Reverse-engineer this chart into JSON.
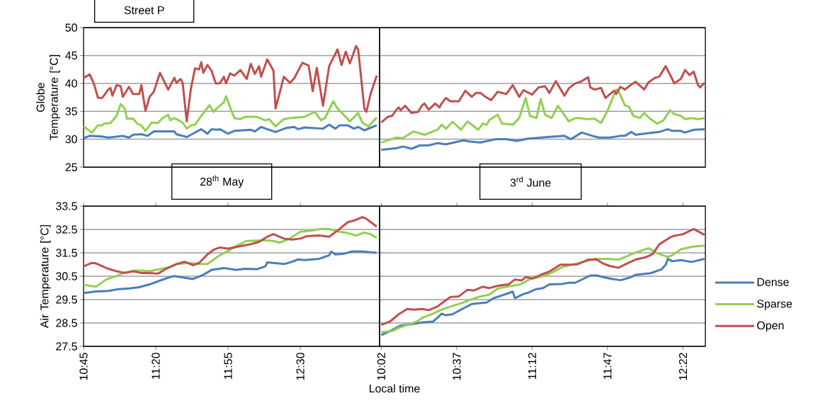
{
  "chart_data": [
    {
      "type": "line",
      "title": "Street P",
      "ylabel": "Globe Temperature [°C]",
      "xlim": [
        10.75,
        13.14
      ],
      "ylim": [
        25,
        50
      ],
      "yticks": [
        25,
        30,
        35,
        40,
        45,
        50
      ],
      "grid": "y",
      "tick_labels": "y",
      "series": [
        {
          "color": "#4a7ebb",
          "x": [
            10.75,
            10.8,
            10.9,
            10.95,
            11.067,
            11.117,
            11.15,
            11.217,
            11.267,
            11.317,
            11.483,
            11.5,
            11.583,
            11.633,
            11.7,
            11.75,
            11.783,
            11.833,
            11.85,
            11.917,
            11.967,
            12.1,
            12.133,
            12.183,
            12.233,
            12.3,
            12.383,
            12.45,
            12.483,
            12.533,
            12.683,
            12.733,
            12.783,
            12.817,
            12.883,
            12.933,
            12.967,
            13.017,
            13.117
          ],
          "values": [
            30.2,
            30.6,
            30.5,
            30.3,
            30.6,
            30.3,
            30.8,
            30.9,
            30.6,
            31.4,
            31.4,
            30.9,
            30.4,
            31.0,
            31.8,
            31.0,
            31.8,
            31.7,
            31.8,
            31.0,
            31.5,
            31.7,
            31.4,
            32.2,
            31.8,
            31.3,
            32.0,
            32.2,
            31.8,
            32.1,
            31.9,
            32.6,
            31.9,
            32.5,
            32.5,
            31.9,
            32.2,
            31.6,
            32.5
          ]
        },
        {
          "color": "#92d050",
          "x": [
            10.75,
            10.817,
            10.867,
            10.9,
            10.917,
            10.967,
            11.017,
            11.05,
            11.083,
            11.1,
            11.15,
            11.183,
            11.217,
            11.25,
            11.3,
            11.35,
            11.383,
            11.433,
            11.45,
            11.483,
            11.55,
            11.583,
            11.617,
            11.65,
            11.7,
            11.767,
            11.8,
            11.833,
            11.883,
            11.9,
            11.967,
            12.017,
            12.05,
            12.15,
            12.217,
            12.25,
            12.3,
            12.367,
            12.417,
            12.533,
            12.617,
            12.667,
            12.7,
            12.75,
            12.767,
            12.8,
            12.85,
            12.9,
            12.967,
            13.0,
            13.05,
            13.117
          ],
          "values": [
            32.3,
            31.2,
            32.5,
            32.5,
            32.8,
            32.9,
            34.2,
            36.3,
            35.5,
            33.7,
            33.7,
            32.8,
            32.5,
            31.5,
            33.0,
            32.9,
            33.7,
            34.4,
            33.4,
            33.8,
            33.0,
            31.9,
            32.5,
            32.6,
            34.2,
            36.1,
            34.9,
            35.7,
            36.6,
            37.7,
            33.8,
            33.6,
            34.0,
            34.0,
            33.4,
            33.6,
            32.3,
            33.6,
            33.8,
            34.0,
            34.9,
            33.4,
            33.8,
            36.1,
            36.8,
            35.5,
            34.4,
            33.2,
            34.7,
            33.0,
            32.3,
            33.9
          ]
        },
        {
          "color": "#c0504d",
          "x": [
            10.75,
            10.8,
            10.833,
            10.867,
            10.9,
            10.95,
            10.967,
            10.983,
            11.017,
            11.05,
            11.067,
            11.117,
            11.15,
            11.2,
            11.217,
            11.25,
            11.283,
            11.317,
            11.367,
            11.433,
            11.483,
            11.5,
            11.533,
            11.55,
            11.583,
            11.617,
            11.65,
            11.683,
            11.7,
            11.717,
            11.75,
            11.783,
            11.817,
            11.85,
            11.883,
            11.9,
            11.933,
            11.967,
            12.017,
            12.067,
            12.1,
            12.133,
            12.167,
            12.183,
            12.233,
            12.283,
            12.3,
            12.367,
            12.417,
            12.45,
            12.517,
            12.567,
            12.6,
            12.633,
            12.683,
            12.733,
            12.8,
            12.833,
            12.867,
            12.9,
            12.95,
            12.967,
            13.017,
            13.033,
            13.067,
            13.117
          ],
          "values": [
            41.0,
            41.6,
            40.0,
            37.4,
            37.4,
            38.9,
            39.2,
            37.8,
            39.7,
            39.5,
            37.6,
            39.4,
            38.1,
            38.1,
            39.7,
            35.1,
            37.6,
            38.5,
            41.9,
            38.9,
            41.0,
            40.1,
            40.8,
            40.1,
            33.2,
            39.1,
            42.7,
            42.5,
            43.8,
            41.9,
            43.3,
            42.3,
            40.0,
            40.0,
            41.2,
            40.0,
            41.8,
            41.4,
            42.4,
            40.8,
            43.5,
            41.7,
            43.1,
            41.2,
            44.3,
            42.3,
            35.5,
            41.2,
            40.1,
            40.9,
            43.7,
            43.2,
            38.6,
            42.8,
            36.0,
            43.1,
            46.1,
            43.3,
            45.7,
            43.6,
            46.7,
            46.1,
            35.5,
            34.9,
            38.1,
            41.4
          ]
        }
      ]
    },
    {
      "type": "line",
      "xlim": [
        10.02,
        12.54
      ],
      "ylim": [
        25,
        50
      ],
      "yticks": [
        25,
        30,
        35,
        40,
        45,
        50
      ],
      "grid": "y",
      "tick_labels": false,
      "series": [
        {
          "color": "#4a7ebb",
          "x": [
            10.033,
            10.15,
            10.2,
            10.267,
            10.333,
            10.4,
            10.467,
            10.533,
            10.667,
            10.717,
            10.8,
            10.917,
            11.0,
            11.083,
            11.167,
            11.317,
            11.45,
            11.5,
            11.583,
            11.667,
            11.717,
            11.8,
            11.883,
            11.917,
            11.967,
            12.0,
            12.1,
            12.183,
            12.25,
            12.283,
            12.35,
            12.383,
            12.45,
            12.533
          ],
          "values": [
            28.1,
            28.4,
            28.7,
            28.3,
            28.9,
            28.9,
            29.3,
            29.1,
            29.8,
            29.6,
            29.4,
            30.0,
            30.0,
            29.7,
            30.1,
            30.4,
            30.6,
            30.0,
            31.2,
            30.6,
            30.3,
            30.3,
            30.6,
            30.6,
            31.3,
            30.8,
            31.1,
            31.3,
            31.8,
            31.5,
            31.5,
            31.2,
            31.7,
            31.8
          ]
        },
        {
          "color": "#92d050",
          "x": [
            10.033,
            10.083,
            10.15,
            10.2,
            10.283,
            10.367,
            10.433,
            10.467,
            10.5,
            10.533,
            10.583,
            10.6,
            10.65,
            10.7,
            10.783,
            10.817,
            10.85,
            10.867,
            10.933,
            10.967,
            11.05,
            11.1,
            11.15,
            11.183,
            11.233,
            11.267,
            11.3,
            11.35,
            11.4,
            11.483,
            11.533,
            11.567,
            11.633,
            11.683,
            11.733,
            11.783,
            11.85,
            11.867,
            11.917,
            11.95,
            11.983,
            12.033,
            12.067,
            12.117,
            12.167,
            12.217,
            12.267,
            12.3,
            12.35,
            12.383,
            12.433,
            12.483,
            12.533
          ],
          "values": [
            29.4,
            29.8,
            30.3,
            30.2,
            31.4,
            30.8,
            31.4,
            31.7,
            32.6,
            31.9,
            33.1,
            32.8,
            31.7,
            33.2,
            31.7,
            32.8,
            32.6,
            33.4,
            34.4,
            32.8,
            32.6,
            33.8,
            37.4,
            34.2,
            33.8,
            37.2,
            34.4,
            33.8,
            36.0,
            33.2,
            33.8,
            33.8,
            33.6,
            33.7,
            32.9,
            35.1,
            38.9,
            38.7,
            36.1,
            35.8,
            34.2,
            33.8,
            34.7,
            33.6,
            32.8,
            33.4,
            35.2,
            34.5,
            34.2,
            33.6,
            33.8,
            33.6,
            33.8
          ]
        },
        {
          "color": "#c0504d",
          "x": [
            10.033,
            10.083,
            10.117,
            10.15,
            10.167,
            10.183,
            10.217,
            10.267,
            10.317,
            10.35,
            10.367,
            10.4,
            10.45,
            10.483,
            10.5,
            10.533,
            10.567,
            10.633,
            10.683,
            10.733,
            10.767,
            10.8,
            10.833,
            10.883,
            10.933,
            11.0,
            11.05,
            11.1,
            11.133,
            11.2,
            11.25,
            11.3,
            11.333,
            11.383,
            11.45,
            11.483,
            11.533,
            11.583,
            11.633,
            11.65,
            11.683,
            11.733,
            11.767,
            11.833,
            11.85,
            11.883,
            11.917,
            11.967,
            12.0,
            12.067,
            12.1,
            12.15,
            12.183,
            12.233,
            12.283,
            12.3,
            12.35,
            12.383,
            12.417,
            12.45,
            12.483,
            12.5,
            12.533
          ],
          "values": [
            33.0,
            34.0,
            34.2,
            35.3,
            35.7,
            35.2,
            36.0,
            34.7,
            34.9,
            36.1,
            36.4,
            35.3,
            36.4,
            35.7,
            36.4,
            37.4,
            36.8,
            36.8,
            38.7,
            37.6,
            38.3,
            38.3,
            37.7,
            37.0,
            38.5,
            38.1,
            39.7,
            37.6,
            38.8,
            38.0,
            39.3,
            39.5,
            38.3,
            40.4,
            37.8,
            39.1,
            40.0,
            40.4,
            41.1,
            39.3,
            38.9,
            39.2,
            37.4,
            38.7,
            38.1,
            39.4,
            38.9,
            39.8,
            40.3,
            38.9,
            40.2,
            41.0,
            41.2,
            43.1,
            40.8,
            40.0,
            40.8,
            42.4,
            41.5,
            42.1,
            39.7,
            39.3,
            40.1
          ]
        }
      ]
    },
    {
      "type": "line",
      "title": "28$^{th}$ May",
      "xlabel": "Local time",
      "ylabel": "Air Temperature [°C]",
      "xlim": [
        10.75,
        13.14
      ],
      "ylim": [
        27.5,
        33.5
      ],
      "yticks": [
        27.5,
        28.5,
        29.5,
        30.5,
        31.5,
        32.5,
        33.5
      ],
      "xticks": [
        {
          "value": 10.75,
          "label": "10:45"
        },
        {
          "value": 11.333,
          "label": "11:20"
        },
        {
          "value": 11.917,
          "label": "11:55"
        },
        {
          "value": 12.5,
          "label": "12:30"
        }
      ],
      "grid": "y",
      "series": [
        {
          "color": "#4a7ebb",
          "x": [
            10.75,
            10.85,
            10.95,
            11.033,
            11.117,
            11.2,
            11.283,
            11.35,
            11.417,
            11.483,
            11.567,
            11.633,
            11.717,
            11.783,
            11.883,
            11.983,
            12.05,
            12.15,
            12.217,
            12.233,
            12.317,
            12.367,
            12.417,
            12.483,
            12.533,
            12.65,
            12.733,
            12.75,
            12.783,
            12.85,
            12.917,
            13.0,
            13.117
          ],
          "values": [
            29.78,
            29.85,
            29.87,
            29.95,
            29.98,
            30.03,
            30.15,
            30.28,
            30.41,
            30.51,
            30.43,
            30.38,
            30.56,
            30.77,
            30.85,
            30.77,
            30.82,
            30.8,
            30.92,
            31.09,
            31.05,
            31.02,
            31.09,
            31.22,
            31.19,
            31.24,
            31.4,
            31.55,
            31.43,
            31.46,
            31.56,
            31.56,
            31.5
          ]
        },
        {
          "color": "#92d050",
          "x": [
            10.75,
            10.85,
            10.933,
            11.017,
            11.083,
            11.167,
            11.217,
            11.283,
            11.35,
            11.433,
            11.5,
            11.6,
            11.683,
            11.75,
            11.85,
            11.917,
            12.0,
            12.067,
            12.217,
            12.283,
            12.333,
            12.4,
            12.5,
            12.583,
            12.667,
            12.733,
            12.8,
            12.883,
            12.95,
            13.017,
            13.067,
            13.117
          ],
          "values": [
            30.13,
            30.05,
            30.36,
            30.51,
            30.66,
            30.74,
            30.74,
            30.71,
            30.79,
            30.87,
            31.02,
            31.07,
            31.02,
            31.02,
            31.4,
            31.58,
            31.84,
            32.01,
            32.04,
            32.01,
            31.94,
            32.07,
            32.4,
            32.45,
            32.52,
            32.52,
            32.42,
            32.35,
            32.24,
            32.37,
            32.3,
            32.14
          ]
        },
        {
          "color": "#c0504d",
          "x": [
            10.75,
            10.817,
            10.85,
            10.933,
            11.017,
            11.083,
            11.15,
            11.217,
            11.283,
            11.35,
            11.417,
            11.5,
            11.567,
            11.633,
            11.683,
            11.75,
            11.8,
            11.85,
            11.917,
            12.017,
            12.1,
            12.167,
            12.233,
            12.283,
            12.367,
            12.433,
            12.5,
            12.55,
            12.65,
            12.733,
            12.8,
            12.883,
            12.95,
            13.0,
            13.033,
            13.117
          ],
          "values": [
            30.92,
            31.07,
            31.05,
            30.85,
            30.71,
            30.64,
            30.71,
            30.64,
            30.64,
            30.61,
            30.82,
            31.02,
            31.12,
            30.97,
            31.07,
            31.43,
            31.63,
            31.73,
            31.68,
            31.79,
            31.87,
            31.97,
            32.19,
            32.3,
            32.11,
            32.07,
            32.11,
            32.21,
            32.24,
            32.19,
            32.45,
            32.81,
            32.91,
            33.03,
            32.96,
            32.62
          ]
        }
      ]
    },
    {
      "type": "line",
      "title": "3$^{rd}$ June",
      "xlim": [
        10.02,
        12.54
      ],
      "ylim": [
        27.5,
        33.5
      ],
      "yticks": [
        27.5,
        28.5,
        29.5,
        30.5,
        31.5,
        32.5,
        33.5
      ],
      "xticks": [
        {
          "value": 10.033,
          "label": "10:02"
        },
        {
          "value": 10.617,
          "label": "10:37"
        },
        {
          "value": 11.2,
          "label": "11:12"
        },
        {
          "value": 11.783,
          "label": "11:47"
        },
        {
          "value": 12.367,
          "label": "12:22"
        }
      ],
      "grid": "y",
      "tick_labels": "x",
      "legend": "right",
      "series": [
        {
          "name": "Dense",
          "color": "#4a7ebb",
          "x": [
            10.033,
            10.1,
            10.183,
            10.283,
            10.35,
            10.433,
            10.483,
            10.5,
            10.533,
            10.583,
            10.65,
            10.733,
            10.85,
            10.9,
            10.967,
            11.05,
            11.067,
            11.133,
            11.167,
            11.233,
            11.283,
            11.333,
            11.433,
            11.483,
            11.533,
            11.65,
            11.7,
            11.75,
            11.8,
            11.883,
            11.95,
            12.0,
            12.117,
            12.2,
            12.233,
            12.25,
            12.283,
            12.35,
            12.433,
            12.533
          ],
          "values": [
            27.98,
            28.15,
            28.39,
            28.46,
            28.52,
            28.56,
            28.8,
            28.9,
            28.83,
            28.87,
            29.07,
            29.31,
            29.38,
            29.56,
            29.68,
            29.84,
            29.56,
            29.74,
            29.79,
            29.95,
            29.99,
            30.15,
            30.17,
            30.22,
            30.22,
            30.53,
            30.53,
            30.46,
            30.4,
            30.33,
            30.43,
            30.56,
            30.63,
            30.79,
            30.99,
            31.24,
            31.14,
            31.19,
            31.11,
            31.24
          ]
        },
        {
          "name": "Sparse",
          "color": "#92d050",
          "x": [
            10.033,
            10.117,
            10.167,
            10.25,
            10.317,
            10.35,
            10.433,
            10.5,
            10.567,
            10.65,
            10.717,
            10.783,
            10.867,
            10.933,
            11.017,
            11.083,
            11.117,
            11.183,
            11.267,
            11.333,
            11.433,
            11.517,
            11.583,
            11.683,
            11.783,
            11.867,
            11.933,
            11.983,
            12.1,
            12.167,
            12.25,
            12.283,
            12.35,
            12.433,
            12.533
          ],
          "values": [
            28.11,
            28.15,
            28.29,
            28.44,
            28.59,
            28.72,
            28.9,
            29.07,
            29.2,
            29.34,
            29.48,
            29.61,
            29.71,
            29.97,
            30.07,
            30.12,
            30.17,
            30.38,
            30.48,
            30.6,
            30.89,
            31.01,
            31.09,
            31.24,
            31.24,
            31.21,
            31.35,
            31.48,
            31.7,
            31.48,
            31.32,
            31.4,
            31.65,
            31.76,
            31.81
          ]
        },
        {
          "name": "Open",
          "color": "#c0504d",
          "x": [
            10.033,
            10.1,
            10.167,
            10.233,
            10.283,
            10.35,
            10.4,
            10.467,
            10.517,
            10.567,
            10.633,
            10.7,
            10.75,
            10.817,
            10.867,
            10.933,
            11.017,
            11.067,
            11.117,
            11.15,
            11.2,
            11.267,
            11.333,
            11.417,
            11.5,
            11.55,
            11.633,
            11.7,
            11.75,
            11.8,
            11.867,
            11.933,
            12.0,
            12.083,
            12.133,
            12.183,
            12.267,
            12.3,
            12.367,
            12.45,
            12.533
          ],
          "values": [
            28.42,
            28.56,
            28.87,
            29.1,
            29.07,
            29.1,
            29.05,
            29.2,
            29.41,
            29.61,
            29.64,
            29.92,
            29.89,
            30.05,
            29.99,
            30.09,
            30.15,
            30.36,
            30.32,
            30.46,
            30.4,
            30.56,
            30.7,
            30.99,
            30.99,
            31.01,
            31.21,
            31.21,
            31.04,
            30.94,
            30.86,
            31.04,
            31.21,
            31.32,
            31.45,
            31.86,
            32.16,
            32.23,
            32.3,
            32.52,
            32.27
          ]
        }
      ]
    }
  ]
}
